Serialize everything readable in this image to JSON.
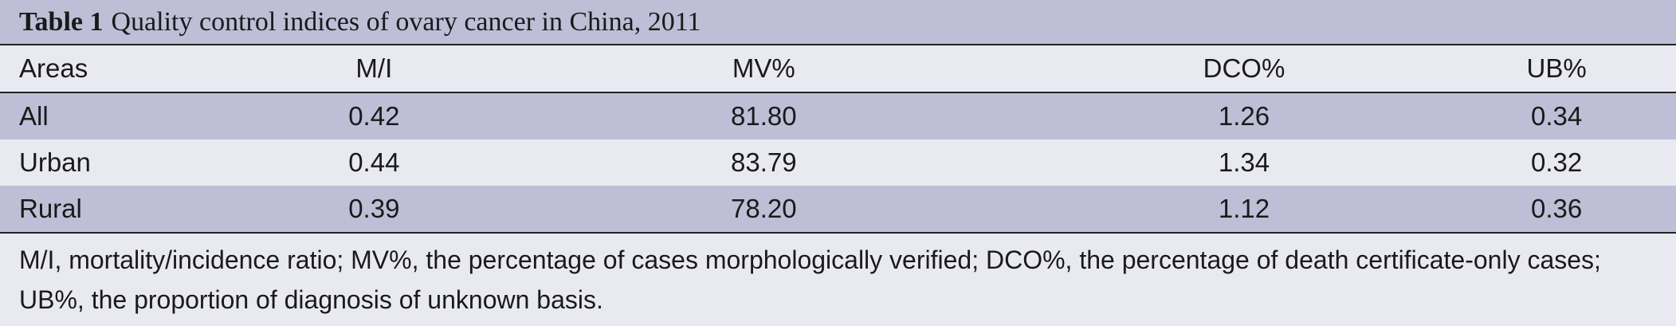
{
  "caption": {
    "label": "Table 1",
    "title": "Quality control indices of ovary cancer in China, 2011"
  },
  "table": {
    "headers": [
      "Areas",
      "M/I",
      "MV%",
      "DCO%",
      "UB%"
    ],
    "rows": [
      [
        "All",
        "0.42",
        "81.80",
        "1.26",
        "0.34"
      ],
      [
        "Urban",
        "0.44",
        "83.79",
        "1.34",
        "0.32"
      ],
      [
        "Rural",
        "0.39",
        "78.20",
        "1.12",
        "0.36"
      ]
    ]
  },
  "footnote": "M/I, mortality/incidence ratio; MV%, the percentage of cases morphologically verified; DCO%, the percentage of death certificate-only cases; UB%, the proportion of diagnosis of unknown basis.",
  "colors": {
    "shade": "#bebed6",
    "background": "#e9e9f2",
    "rule": "#222222"
  }
}
